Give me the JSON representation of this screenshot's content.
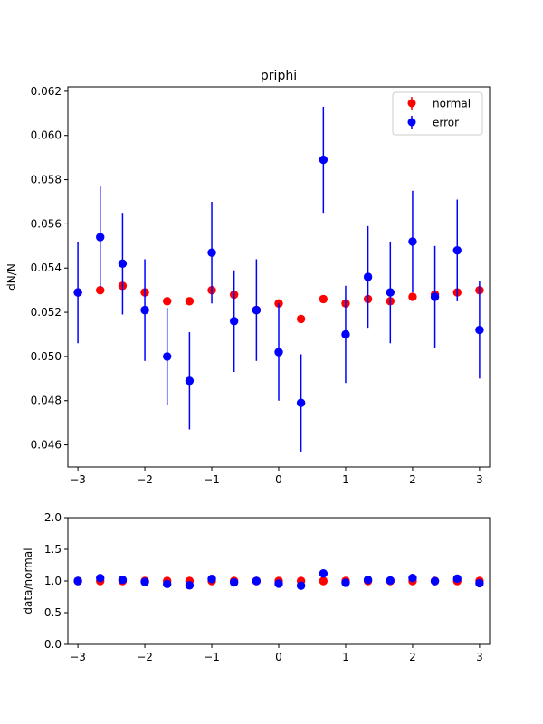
{
  "chart_data": [
    {
      "type": "scatter",
      "title": "priphi",
      "xlabel": "",
      "ylabel": "dN/N",
      "xlim": [
        -3.15,
        3.15
      ],
      "ylim": [
        0.045,
        0.0622
      ],
      "xticks": [
        -3,
        -2,
        -1,
        0,
        1,
        2,
        3
      ],
      "xtick_labels": [
        "−3",
        "−2",
        "−1",
        "0",
        "1",
        "2",
        "3"
      ],
      "yticks": [
        0.046,
        0.048,
        0.05,
        0.052,
        0.054,
        0.056,
        0.058,
        0.06,
        0.062
      ],
      "ytick_labels": [
        "0.046",
        "0.048",
        "0.050",
        "0.052",
        "0.054",
        "0.056",
        "0.058",
        "0.060",
        "0.062"
      ],
      "legend_position": "top-right",
      "legend": [
        "normal",
        "error"
      ],
      "series": [
        {
          "name": "normal",
          "color": "#ff0000",
          "x": [
            -3.0,
            -2.667,
            -2.333,
            -2.0,
            -1.667,
            -1.333,
            -1.0,
            -0.667,
            -0.333,
            0.0,
            0.333,
            0.667,
            1.0,
            1.333,
            1.667,
            2.0,
            2.333,
            2.667,
            3.0
          ],
          "y": [
            0.0529,
            0.053,
            0.0532,
            0.0529,
            0.0525,
            0.0525,
            0.053,
            0.0528,
            0.0521,
            0.0524,
            0.0517,
            0.0526,
            0.0524,
            0.0526,
            0.0525,
            0.0527,
            0.0528,
            0.0529,
            0.053
          ]
        },
        {
          "name": "error",
          "color": "#0000ff",
          "x": [
            -3.0,
            -2.667,
            -2.333,
            -2.0,
            -1.667,
            -1.333,
            -1.0,
            -0.667,
            -0.333,
            0.0,
            0.333,
            0.667,
            1.0,
            1.333,
            1.667,
            2.0,
            2.333,
            2.667,
            3.0
          ],
          "y": [
            0.0529,
            0.0554,
            0.0542,
            0.0521,
            0.05,
            0.0489,
            0.0547,
            0.0516,
            0.0521,
            0.0502,
            0.0479,
            0.0589,
            0.051,
            0.0536,
            0.0529,
            0.0552,
            0.0527,
            0.0548,
            0.0512
          ],
          "err": [
            0.0023,
            0.0023,
            0.0023,
            0.0023,
            0.0022,
            0.0022,
            0.0023,
            0.0023,
            0.0023,
            0.0022,
            0.0022,
            0.0024,
            0.0022,
            0.0023,
            0.0023,
            0.0023,
            0.0023,
            0.0023,
            0.0022
          ]
        }
      ]
    },
    {
      "type": "scatter",
      "title": "",
      "xlabel": "",
      "ylabel": "data/normal",
      "xlim": [
        -3.15,
        3.15
      ],
      "ylim": [
        0.0,
        2.0
      ],
      "xticks": [
        -3,
        -2,
        -1,
        0,
        1,
        2,
        3
      ],
      "xtick_labels": [
        "−3",
        "−2",
        "−1",
        "0",
        "1",
        "2",
        "3"
      ],
      "yticks": [
        0.0,
        0.5,
        1.0,
        1.5,
        2.0
      ],
      "ytick_labels": [
        "0.0",
        "0.5",
        "1.0",
        "1.5",
        "2.0"
      ],
      "series": [
        {
          "name": "normal",
          "color": "#ff0000",
          "x": [
            -3.0,
            -2.667,
            -2.333,
            -2.0,
            -1.667,
            -1.333,
            -1.0,
            -0.667,
            -0.333,
            0.0,
            0.333,
            0.667,
            1.0,
            1.333,
            1.667,
            2.0,
            2.333,
            2.667,
            3.0
          ],
          "y": [
            1.0,
            1.0,
            1.0,
            1.0,
            1.0,
            1.0,
            1.0,
            1.0,
            1.0,
            1.0,
            1.0,
            1.0,
            1.0,
            1.0,
            1.0,
            1.0,
            1.0,
            1.0,
            1.0
          ]
        },
        {
          "name": "error",
          "color": "#0000ff",
          "x": [
            -3.0,
            -2.667,
            -2.333,
            -2.0,
            -1.667,
            -1.333,
            -1.0,
            -0.667,
            -0.333,
            0.0,
            0.333,
            0.667,
            1.0,
            1.333,
            1.667,
            2.0,
            2.333,
            2.667,
            3.0
          ],
          "y": [
            1.0,
            1.045,
            1.019,
            0.985,
            0.952,
            0.932,
            1.032,
            0.978,
            1.0,
            0.958,
            0.926,
            1.119,
            0.973,
            1.019,
            1.008,
            1.047,
            0.998,
            1.036,
            0.965
          ]
        }
      ]
    }
  ]
}
